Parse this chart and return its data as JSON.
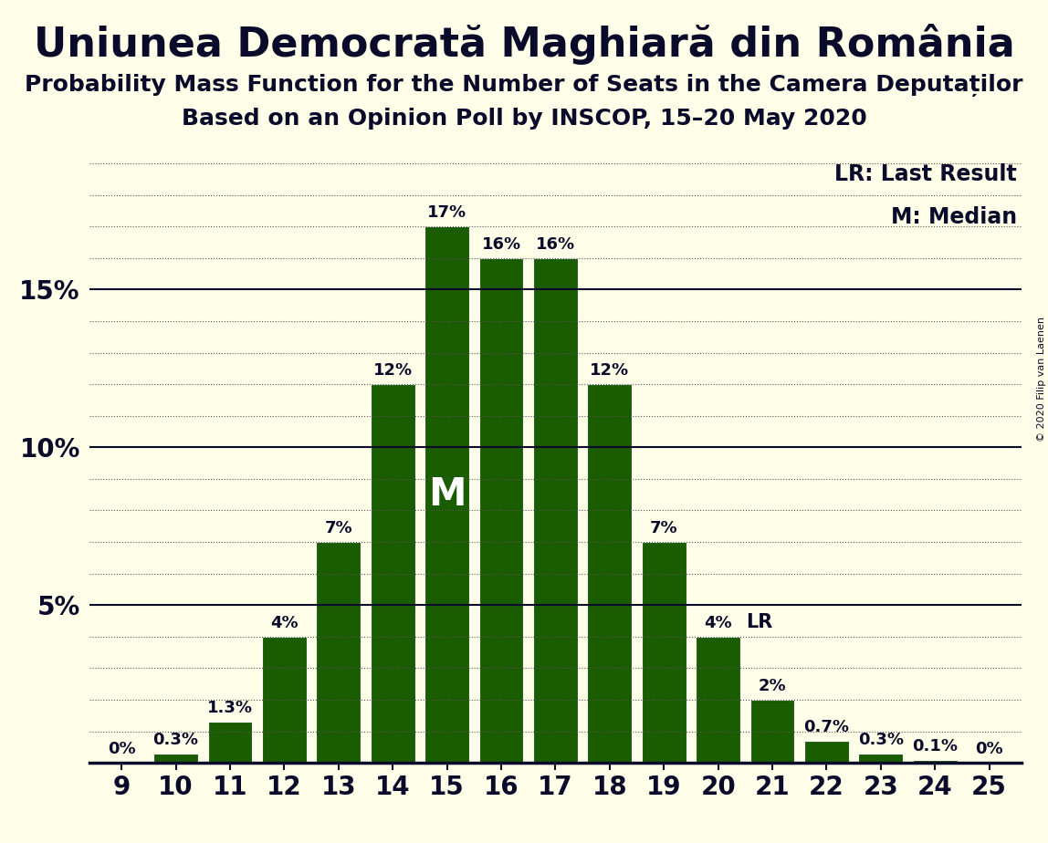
{
  "title": "Uniunea Democrată Maghiară din România",
  "subtitle1": "Probability Mass Function for the Number of Seats in the Camera Deputaților",
  "subtitle2": "Based on an Opinion Poll by INSCOP, 15–20 May 2020",
  "copyright": "© 2020 Filip van Laenen",
  "categories": [
    9,
    10,
    11,
    12,
    13,
    14,
    15,
    16,
    17,
    18,
    19,
    20,
    21,
    22,
    23,
    24,
    25
  ],
  "values": [
    0.0,
    0.3,
    1.3,
    4.0,
    7.0,
    12.0,
    17.0,
    16.0,
    16.0,
    12.0,
    7.0,
    4.0,
    2.0,
    0.7,
    0.3,
    0.1,
    0.0
  ],
  "labels": [
    "0%",
    "0.3%",
    "1.3%",
    "4%",
    "7%",
    "12%",
    "17%",
    "16%",
    "16%",
    "12%",
    "7%",
    "4%",
    "2%",
    "0.7%",
    "0.3%",
    "0.1%",
    "0%"
  ],
  "bar_color": "#1a5c00",
  "background_color": "#fffee8",
  "text_color": "#0a0a2a",
  "median_bar": 15,
  "lr_bar": 20,
  "ylim": [
    0,
    19.5
  ],
  "ytick_positions": [
    0,
    5,
    10,
    15
  ],
  "ytick_labels": [
    "0%",
    "5%",
    "10%",
    "15%"
  ],
  "dotted_lines": [
    1,
    2,
    3,
    4,
    6,
    7,
    8,
    9,
    11,
    12,
    13,
    14,
    16,
    17,
    18,
    19
  ],
  "solid_lines": [
    5,
    10,
    15
  ],
  "legend_lr": "LR: Last Result",
  "legend_m": "M: Median",
  "title_fontsize": 32,
  "subtitle_fontsize": 18,
  "label_fontsize": 13,
  "tick_fontsize": 20
}
